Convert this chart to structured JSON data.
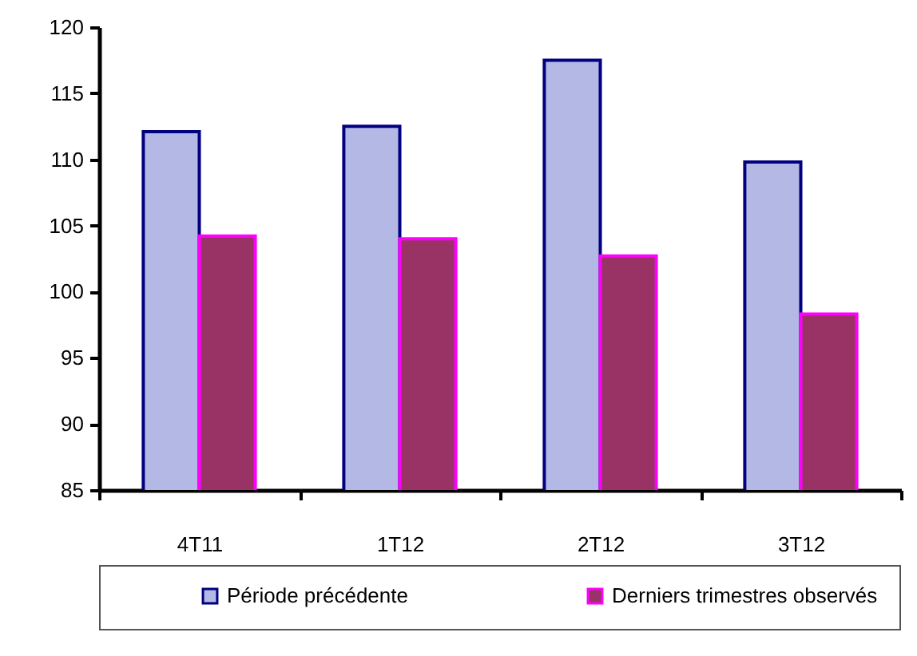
{
  "chart_data": {
    "type": "bar",
    "categories": [
      "4T11",
      "1T12",
      "2T12",
      "3T12"
    ],
    "series": [
      {
        "name": "Période précédente",
        "color": "#b4b8e4",
        "values": [
          112.1,
          112.5,
          117.5,
          109.8
        ]
      },
      {
        "name": "Derniers trimestres observés",
        "color": "#993366",
        "values": [
          104.2,
          104.0,
          102.7,
          98.3
        ]
      }
    ],
    "ylim": [
      85,
      120
    ],
    "yticks": [
      85,
      90,
      95,
      100,
      105,
      110,
      115,
      120
    ],
    "grid": false,
    "legend": "bottom"
  }
}
